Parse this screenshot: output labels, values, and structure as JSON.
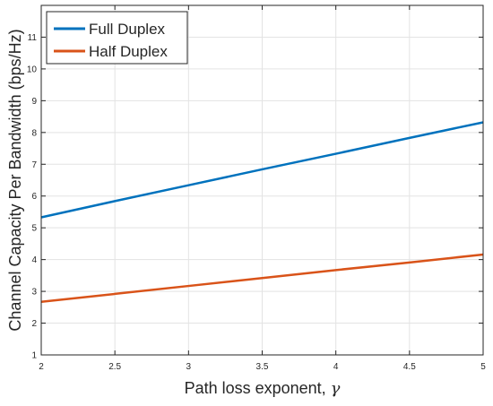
{
  "chart_data": {
    "type": "line",
    "xlabel": "Path loss exponent, ",
    "xlabel_symbol": "γ",
    "ylabel": "Channel Capacity Per Bandwidth (bps/Hz)",
    "xlim": [
      2,
      5
    ],
    "ylim": [
      1,
      12
    ],
    "x_ticks": [
      "2",
      "2.5",
      "3",
      "3.5",
      "4",
      "4.5",
      "5"
    ],
    "y_ticks": [
      "1",
      "2",
      "3",
      "4",
      "5",
      "6",
      "7",
      "8",
      "9",
      "10",
      "11"
    ],
    "grid": true,
    "legend_location": "top-left",
    "series": [
      {
        "name": "Full Duplex",
        "color": "#0072BD",
        "x": [
          2,
          2.5,
          3,
          3.5,
          4,
          4.5,
          5
        ],
        "y": [
          5.33,
          5.84,
          6.34,
          6.84,
          7.33,
          7.83,
          8.32
        ]
      },
      {
        "name": "Half Duplex",
        "color": "#D95319",
        "x": [
          2,
          2.5,
          3,
          3.5,
          4,
          4.5,
          5
        ],
        "y": [
          2.67,
          2.92,
          3.17,
          3.42,
          3.67,
          3.91,
          4.16
        ]
      }
    ]
  }
}
